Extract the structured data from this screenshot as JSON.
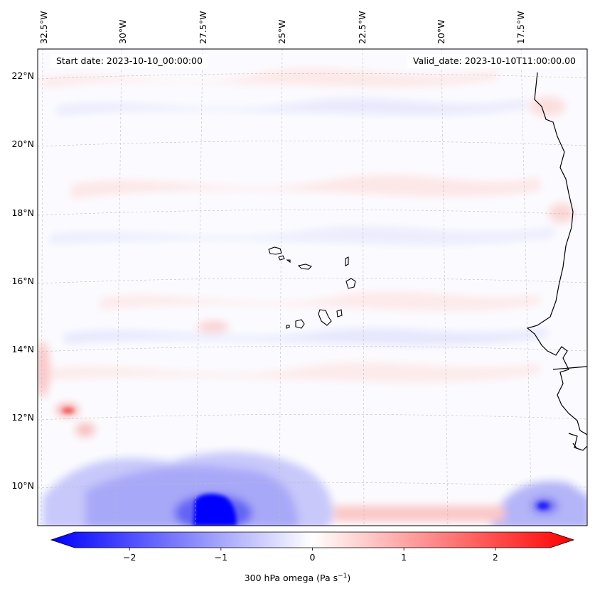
{
  "map": {
    "start_date_label": "Start date: 2023-10-10_00:00:00",
    "valid_date_label": "Valid_date: 2023-10-10T11:00:00.00",
    "lon_ticks": [
      "32.5°W",
      "30°W",
      "27.5°W",
      "25°W",
      "22.5°W",
      "20°W",
      "17.5°W"
    ],
    "lat_ticks": [
      "22°N",
      "20°N",
      "18°N",
      "16°N",
      "14°N",
      "12°N",
      "10°N"
    ],
    "gridlines": true,
    "field": "300 hPa omega",
    "colorbar": {
      "label_text": "300 hPa omega (Pa s",
      "label_exponent": "−1",
      "label_close": ")",
      "ticks": [
        "−2",
        "−1",
        "0",
        "1",
        "2"
      ],
      "tick_values": [
        -2,
        -1,
        0,
        1,
        2
      ],
      "range": [
        -2.6,
        2.6
      ],
      "colormap": "bwr",
      "extend": "both",
      "low_color": "#0000ff",
      "mid_color": "#ffffff",
      "high_color": "#ff0000"
    }
  }
}
